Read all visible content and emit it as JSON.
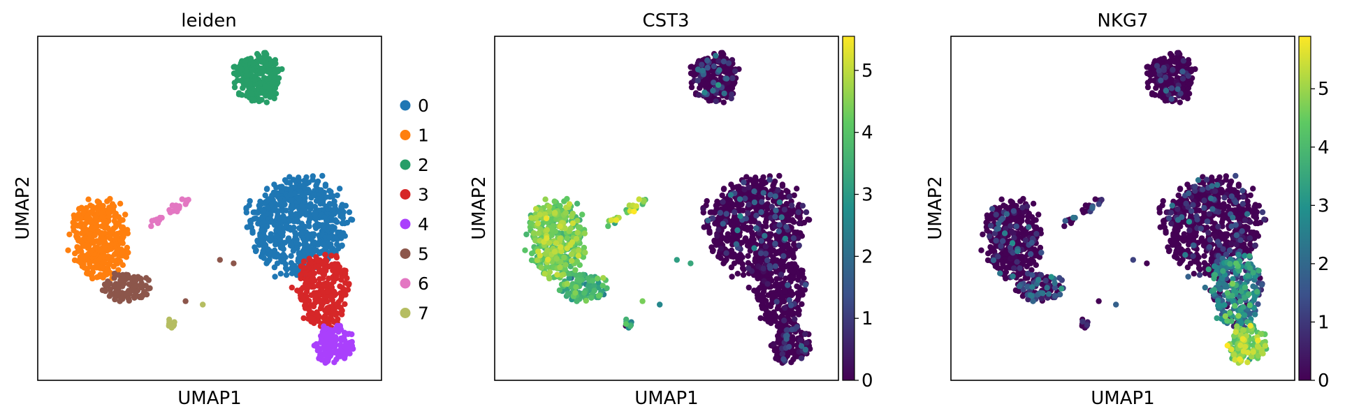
{
  "figure": {
    "panels": [
      "leiden",
      "CST3",
      "NKG7"
    ]
  },
  "chart_data": [
    {
      "type": "scatter",
      "title": "leiden",
      "xlabel": "UMAP1",
      "ylabel": "UMAP2",
      "color_mode": "categorical",
      "legend": {
        "placement": "right",
        "entries": [
          "0",
          "1",
          "2",
          "3",
          "4",
          "5",
          "6",
          "7"
        ],
        "colors": [
          "#1f77b4",
          "#ff7f0e",
          "#279e68",
          "#d62728",
          "#aa40fc",
          "#8c564b",
          "#e377c2",
          "#b5bd61"
        ]
      },
      "series": [
        {
          "name": "0",
          "color": "#1f77b4",
          "n": 660,
          "clusters": [
            {
              "cx": 0.76,
              "cy": 0.55,
              "sx": 0.085,
              "sy": 0.085
            }
          ]
        },
        {
          "name": "1",
          "color": "#ff7f0e",
          "n": 360,
          "clusters": [
            {
              "cx": 0.18,
              "cy": 0.59,
              "sx": 0.05,
              "sy": 0.07
            }
          ]
        },
        {
          "name": "2",
          "color": "#279e68",
          "n": 240,
          "clusters": [
            {
              "cx": 0.64,
              "cy": 0.12,
              "sx": 0.04,
              "sy": 0.045
            }
          ]
        },
        {
          "name": "3",
          "color": "#d62728",
          "n": 260,
          "clusters": [
            {
              "cx": 0.83,
              "cy": 0.74,
              "sx": 0.045,
              "sy": 0.065
            }
          ]
        },
        {
          "name": "4",
          "color": "#aa40fc",
          "n": 130,
          "clusters": [
            {
              "cx": 0.86,
              "cy": 0.89,
              "sx": 0.035,
              "sy": 0.035
            }
          ]
        },
        {
          "name": "5",
          "color": "#8c564b",
          "n": 100,
          "clusters": [
            {
              "cx": 0.26,
              "cy": 0.73,
              "sx": 0.04,
              "sy": 0.025
            }
          ]
        },
        {
          "name": "6",
          "color": "#e377c2",
          "n": 25,
          "line": [
            [
              0.33,
              0.55
            ],
            [
              0.44,
              0.47
            ]
          ]
        },
        {
          "name": "7",
          "color": "#b5bd61",
          "n": 8,
          "clusters": [
            {
              "cx": 0.39,
              "cy": 0.835,
              "sx": 0.008,
              "sy": 0.01
            }
          ]
        }
      ]
    },
    {
      "type": "scatter",
      "title": "CST3",
      "xlabel": "UMAP1",
      "ylabel": "UMAP2",
      "color_mode": "continuous",
      "colormap": [
        "#440154",
        "#3b528b",
        "#21918c",
        "#5ec962",
        "#fde725"
      ],
      "colorbar": {
        "ticks": [
          "0",
          "1",
          "2",
          "3",
          "4",
          "5"
        ],
        "vmin": 0,
        "vmax": 5.55
      },
      "expression_by_cluster": [
        {
          "cluster": "0",
          "mean": 0.3,
          "spread": 0.9,
          "frac_expressing": 0.22
        },
        {
          "cluster": "1",
          "mean": 4.2,
          "spread": 0.5,
          "frac_expressing": 1.0
        },
        {
          "cluster": "2",
          "mean": 0.5,
          "spread": 1.0,
          "frac_expressing": 0.3
        },
        {
          "cluster": "3",
          "mean": 0.2,
          "spread": 0.8,
          "frac_expressing": 0.15
        },
        {
          "cluster": "4",
          "mean": 0.5,
          "spread": 1.0,
          "frac_expressing": 0.3
        },
        {
          "cluster": "5",
          "mean": 3.6,
          "spread": 0.5,
          "frac_expressing": 1.0
        },
        {
          "cluster": "6",
          "mean": 4.5,
          "spread": 0.6,
          "frac_expressing": 1.0
        },
        {
          "cluster": "7",
          "mean": 3.0,
          "spread": 0.8,
          "frac_expressing": 0.6
        }
      ]
    },
    {
      "type": "scatter",
      "title": "NKG7",
      "xlabel": "UMAP1",
      "ylabel": "UMAP2",
      "color_mode": "continuous",
      "colormap": [
        "#440154",
        "#3b528b",
        "#21918c",
        "#5ec962",
        "#fde725"
      ],
      "colorbar": {
        "ticks": [
          "0",
          "1",
          "2",
          "3",
          "4",
          "5"
        ],
        "vmin": 0,
        "vmax": 5.9
      },
      "expression_by_cluster": [
        {
          "cluster": "0",
          "mean": 0.4,
          "spread": 1.0,
          "frac_expressing": 0.25
        },
        {
          "cluster": "1",
          "mean": 0.4,
          "spread": 1.0,
          "frac_expressing": 0.25
        },
        {
          "cluster": "2",
          "mean": 0.3,
          "spread": 0.8,
          "frac_expressing": 0.2
        },
        {
          "cluster": "3",
          "mean": 2.4,
          "spread": 0.9,
          "frac_expressing": 0.9
        },
        {
          "cluster": "4",
          "mean": 4.6,
          "spread": 0.6,
          "frac_expressing": 1.0
        },
        {
          "cluster": "5",
          "mean": 1.2,
          "spread": 0.8,
          "frac_expressing": 0.6
        },
        {
          "cluster": "6",
          "mean": 1.0,
          "spread": 0.8,
          "frac_expressing": 0.5
        },
        {
          "cluster": "7",
          "mean": 0.6,
          "spread": 0.6,
          "frac_expressing": 0.4
        }
      ]
    }
  ]
}
